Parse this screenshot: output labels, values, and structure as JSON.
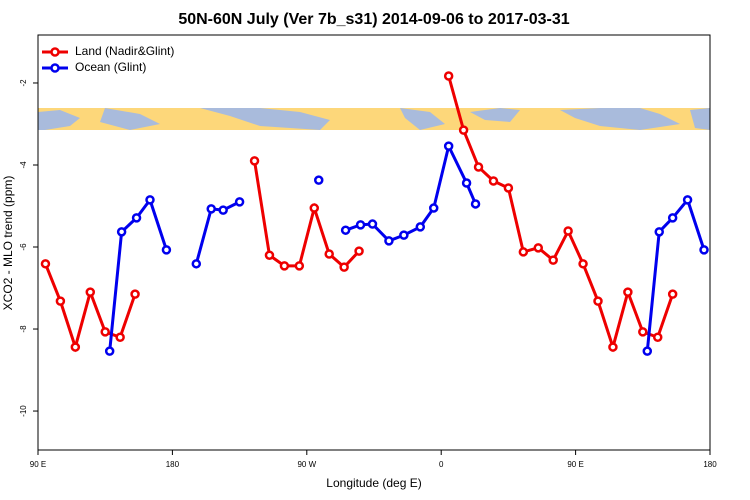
{
  "chart_data": {
    "type": "line",
    "title": "50N-60N July (Ver 7b_s31)   2014-09-06 to 2017-03-31",
    "x_label": "Longitude (deg E)",
    "y_label": "XCO2 - MLO trend (ppm)",
    "xlim": [
      90,
      540
    ],
    "ylim": [
      -10.95,
      -0.83
    ],
    "xticks": [
      {
        "value": 90,
        "label": "90 E"
      },
      {
        "value": 180,
        "label": "180"
      },
      {
        "value": 270,
        "label": "90 W"
      },
      {
        "value": 360,
        "label": "0"
      },
      {
        "value": 450,
        "label": "90 E"
      },
      {
        "value": 540,
        "label": "180"
      }
    ],
    "yticks": [
      -2,
      -4,
      -6,
      -8,
      -10
    ],
    "legend": "top-left",
    "series": [
      {
        "name": "Land (Nadir&Glint)",
        "color": "#ee0000",
        "x": [
          95,
          105,
          115,
          125,
          135,
          145,
          155,
          null,
          235,
          245,
          255,
          265,
          275,
          285,
          295,
          305,
          null,
          365,
          375,
          385,
          395,
          405,
          415,
          425,
          435,
          445,
          455,
          465,
          475,
          485,
          495,
          505,
          515
        ],
        "values": [
          -6.41,
          -7.32,
          -8.44,
          -7.1,
          -8.07,
          -8.2,
          -7.15,
          null,
          -3.9,
          -6.2,
          -6.46,
          -6.46,
          -5.05,
          -6.17,
          -6.49,
          -6.1,
          null,
          -1.83,
          -3.15,
          -4.05,
          -4.39,
          -4.56,
          -6.12,
          -6.02,
          -6.32,
          -5.61,
          -6.41,
          -7.32,
          -8.44,
          -7.1,
          -8.07,
          -8.2,
          -7.15
        ]
      },
      {
        "name": "Ocean (Glint)",
        "color": "#0000ee",
        "x": [
          138,
          146,
          156,
          165,
          176,
          null,
          196,
          206,
          214,
          225,
          null,
          278,
          null,
          296,
          306,
          314,
          325,
          335,
          346,
          355,
          365,
          377,
          383,
          null,
          498,
          506,
          515,
          525,
          536
        ],
        "values": [
          -8.54,
          -5.63,
          -5.29,
          -4.85,
          -6.07,
          null,
          -6.41,
          -5.07,
          -5.1,
          -4.9,
          null,
          -4.37,
          null,
          -5.59,
          -5.46,
          -5.44,
          -5.85,
          -5.71,
          -5.51,
          -5.05,
          -3.54,
          -4.44,
          -4.95,
          null,
          -8.54,
          -5.63,
          -5.29,
          -4.85,
          -6.07
        ]
      }
    ]
  }
}
